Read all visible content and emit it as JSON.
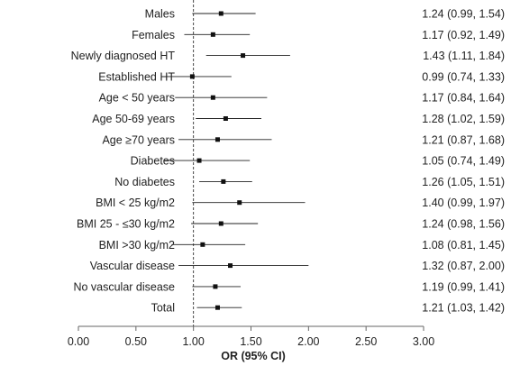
{
  "chart_data": {
    "type": "forest",
    "xlabel": "OR (95% CI)",
    "xlim": [
      0,
      3
    ],
    "xticks": [
      {
        "value": 0,
        "label": "0.00"
      },
      {
        "value": 0.5,
        "label": "0.50"
      },
      {
        "value": 1,
        "label": "1.00"
      },
      {
        "value": 1.5,
        "label": "1.50"
      },
      {
        "value": 2,
        "label": "2.00"
      },
      {
        "value": 2.5,
        "label": "2.50"
      },
      {
        "value": 3,
        "label": "3.00"
      }
    ],
    "reference_line": 1,
    "rows": [
      {
        "label": "Males",
        "or": 1.24,
        "lower": 0.99,
        "upper": 1.54,
        "ci_text": "1.24 (0.99, 1.54)"
      },
      {
        "label": "Females",
        "or": 1.17,
        "lower": 0.92,
        "upper": 1.49,
        "ci_text": "1.17 (0.92, 1.49)"
      },
      {
        "label": "Newly diagnosed HT",
        "or": 1.43,
        "lower": 1.11,
        "upper": 1.84,
        "ci_text": "1.43 (1.11, 1.84)"
      },
      {
        "label": "Established HT",
        "or": 0.99,
        "lower": 0.74,
        "upper": 1.33,
        "ci_text": "0.99 (0.74, 1.33)"
      },
      {
        "label": "Age < 50 years",
        "or": 1.17,
        "lower": 0.84,
        "upper": 1.64,
        "ci_text": "1.17 (0.84, 1.64)"
      },
      {
        "label": "Age 50-69 years",
        "or": 1.28,
        "lower": 1.02,
        "upper": 1.59,
        "ci_text": "1.28 (1.02, 1.59)"
      },
      {
        "label": "Age  ≥70 years",
        "or": 1.21,
        "lower": 0.87,
        "upper": 1.68,
        "ci_text": "1.21 (0.87, 1.68)"
      },
      {
        "label": "Diabetes",
        "or": 1.05,
        "lower": 0.74,
        "upper": 1.49,
        "ci_text": "1.05 (0.74, 1.49)"
      },
      {
        "label": "No diabetes",
        "or": 1.26,
        "lower": 1.05,
        "upper": 1.51,
        "ci_text": "1.26 (1.05, 1.51)"
      },
      {
        "label": "BMI < 25 kg/m2",
        "or": 1.4,
        "lower": 0.99,
        "upper": 1.97,
        "ci_text": "1.40 (0.99, 1.97)"
      },
      {
        "label": "BMI 25 - ≤30 kg/m2",
        "or": 1.24,
        "lower": 0.98,
        "upper": 1.56,
        "ci_text": "1.24 (0.98, 1.56)"
      },
      {
        "label": "BMI >30 kg/m2",
        "or": 1.08,
        "lower": 0.81,
        "upper": 1.45,
        "ci_text": "1.08 (0.81, 1.45)"
      },
      {
        "label": "Vascular disease",
        "or": 1.32,
        "lower": 0.87,
        "upper": 2.0,
        "ci_text": "1.32 (0.87, 2.00)"
      },
      {
        "label": "No vascular disease",
        "or": 1.19,
        "lower": 0.99,
        "upper": 1.41,
        "ci_text": "1.19 (0.99, 1.41)"
      },
      {
        "label": "Total",
        "or": 1.21,
        "lower": 1.03,
        "upper": 1.42,
        "ci_text": "1.21 (1.03, 1.42)"
      }
    ]
  }
}
